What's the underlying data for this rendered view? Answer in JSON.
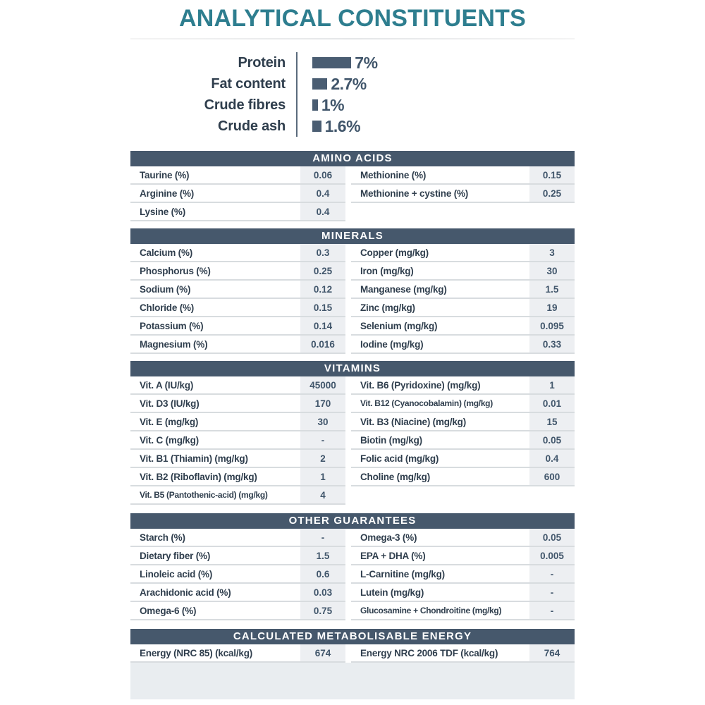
{
  "title": "ANALYTICAL CONSTITUENTS",
  "chart_data": {
    "type": "bar",
    "orientation": "horizontal",
    "title": "ANALYTICAL CONSTITUENTS",
    "unit": "%",
    "categories": [
      "Protein",
      "Fat content",
      "Crude fibres",
      "Crude ash"
    ],
    "values": [
      7,
      2.7,
      1,
      1.6
    ],
    "value_labels": [
      "7%",
      "2.7%",
      "1%",
      "1.6%"
    ],
    "bar_color": "#4a5d72"
  },
  "sections": [
    {
      "title": "AMINO ACIDS",
      "left": [
        {
          "label": "Taurine (%)",
          "value": "0.06"
        },
        {
          "label": "Arginine (%)",
          "value": "0.4"
        },
        {
          "label": "Lysine (%)",
          "value": "0.4"
        }
      ],
      "right": [
        {
          "label": "Methionine (%)",
          "value": "0.15"
        },
        {
          "label": "Methionine + cystine (%)",
          "value": "0.25"
        }
      ]
    },
    {
      "title": "MINERALS",
      "left": [
        {
          "label": "Calcium (%)",
          "value": "0.3"
        },
        {
          "label": "Phosphorus (%)",
          "value": "0.25"
        },
        {
          "label": "Sodium (%)",
          "value": "0.12"
        },
        {
          "label": "Chloride (%)",
          "value": "0.15"
        },
        {
          "label": "Potassium (%)",
          "value": "0.14"
        },
        {
          "label": "Magnesium (%)",
          "value": "0.016"
        }
      ],
      "right": [
        {
          "label": "Copper (mg/kg)",
          "value": "3"
        },
        {
          "label": "Iron (mg/kg)",
          "value": "30"
        },
        {
          "label": "Manganese (mg/kg)",
          "value": "1.5"
        },
        {
          "label": "Zinc (mg/kg)",
          "value": "19"
        },
        {
          "label": "Selenium (mg/kg)",
          "value": "0.095"
        },
        {
          "label": "Iodine (mg/kg)",
          "value": "0.33"
        }
      ]
    },
    {
      "title": "VITAMINS",
      "left": [
        {
          "label": "Vit. A (IU/kg)",
          "value": "45000"
        },
        {
          "label": "Vit. D3 (IU/kg)",
          "value": "170"
        },
        {
          "label": "Vit. E (mg/kg)",
          "value": "30"
        },
        {
          "label": "Vit. C (mg/kg)",
          "value": "-"
        },
        {
          "label": "Vit. B1 (Thiamin) (mg/kg)",
          "value": "2"
        },
        {
          "label": "Vit. B2 (Riboflavin) (mg/kg)",
          "value": "1"
        },
        {
          "label": "Vit. B5 (Pantothenic-acid) (mg/kg)",
          "value": "4"
        }
      ],
      "right": [
        {
          "label": "Vit. B6 (Pyridoxine) (mg/kg)",
          "value": "1"
        },
        {
          "label": "Vit. B12 (Cyanocobalamin) (mg/kg)",
          "value": "0.01"
        },
        {
          "label": "Vit. B3 (Niacine) (mg/kg)",
          "value": "15"
        },
        {
          "label": "Biotin (mg/kg)",
          "value": "0.05"
        },
        {
          "label": "Folic acid (mg/kg)",
          "value": "0.4"
        },
        {
          "label": "Choline (mg/kg)",
          "value": "600"
        }
      ]
    },
    {
      "title": "OTHER GUARANTEES",
      "left": [
        {
          "label": "Starch (%)",
          "value": "-"
        },
        {
          "label": "Dietary fiber (%)",
          "value": "1.5"
        },
        {
          "label": "Linoleic acid (%)",
          "value": "0.6"
        },
        {
          "label": "Arachidonic acid (%)",
          "value": "0.03"
        },
        {
          "label": "Omega-6 (%)",
          "value": "0.75"
        }
      ],
      "right": [
        {
          "label": "Omega-3 (%)",
          "value": "0.05"
        },
        {
          "label": "EPA + DHA (%)",
          "value": "0.005"
        },
        {
          "label": "L-Carnitine (mg/kg)",
          "value": "-"
        },
        {
          "label": "Lutein (mg/kg)",
          "value": "-"
        },
        {
          "label": "Glucosamine + Chondroitine (mg/kg)",
          "value": "-"
        }
      ]
    },
    {
      "title": "CALCULATED METABOLISABLE ENERGY",
      "left": [
        {
          "label": "Energy (NRC 85) (kcal/kg)",
          "value": "674"
        }
      ],
      "right": [
        {
          "label": "Energy NRC 2006 TDF (kcal/kg)",
          "value": "764"
        }
      ]
    }
  ],
  "colors": {
    "title": "#2e7e8f",
    "header_bg": "#46586c",
    "header_text": "#ffffff",
    "bar": "#4a5d72",
    "label_text": "#2f3e4d",
    "value_text": "#41566b",
    "value_bg": "#edeff2",
    "row_border": "#d8dcdf",
    "footer_bg": "#e9edf0"
  }
}
